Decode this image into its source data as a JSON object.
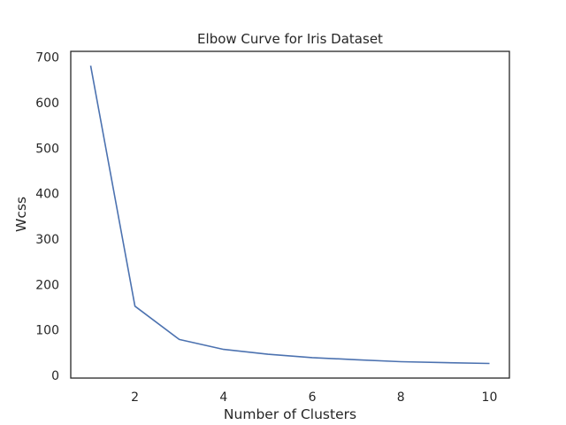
{
  "chart_data": {
    "type": "line",
    "title": "Elbow Curve for Iris Dataset",
    "xlabel": "Number of Clusters",
    "ylabel": "Wcss",
    "x": [
      1,
      2,
      3,
      4,
      5,
      6,
      7,
      8,
      9,
      10
    ],
    "series": [
      {
        "values": [
          681.4,
          152.3,
          78.9,
          57.2,
          46.5,
          39.0,
          34.3,
          30.1,
          28.0,
          26.1
        ]
      }
    ],
    "xlim": [
      0.55,
      10.45
    ],
    "ylim": [
      -6,
      713
    ],
    "xticks": [
      2,
      4,
      6,
      8,
      10
    ],
    "yticks": [
      0,
      100,
      200,
      300,
      400,
      500,
      600,
      700
    ],
    "grid": false,
    "colors": {
      "line": "#4c72b0",
      "spine": "#262626",
      "text": "#262626"
    }
  }
}
